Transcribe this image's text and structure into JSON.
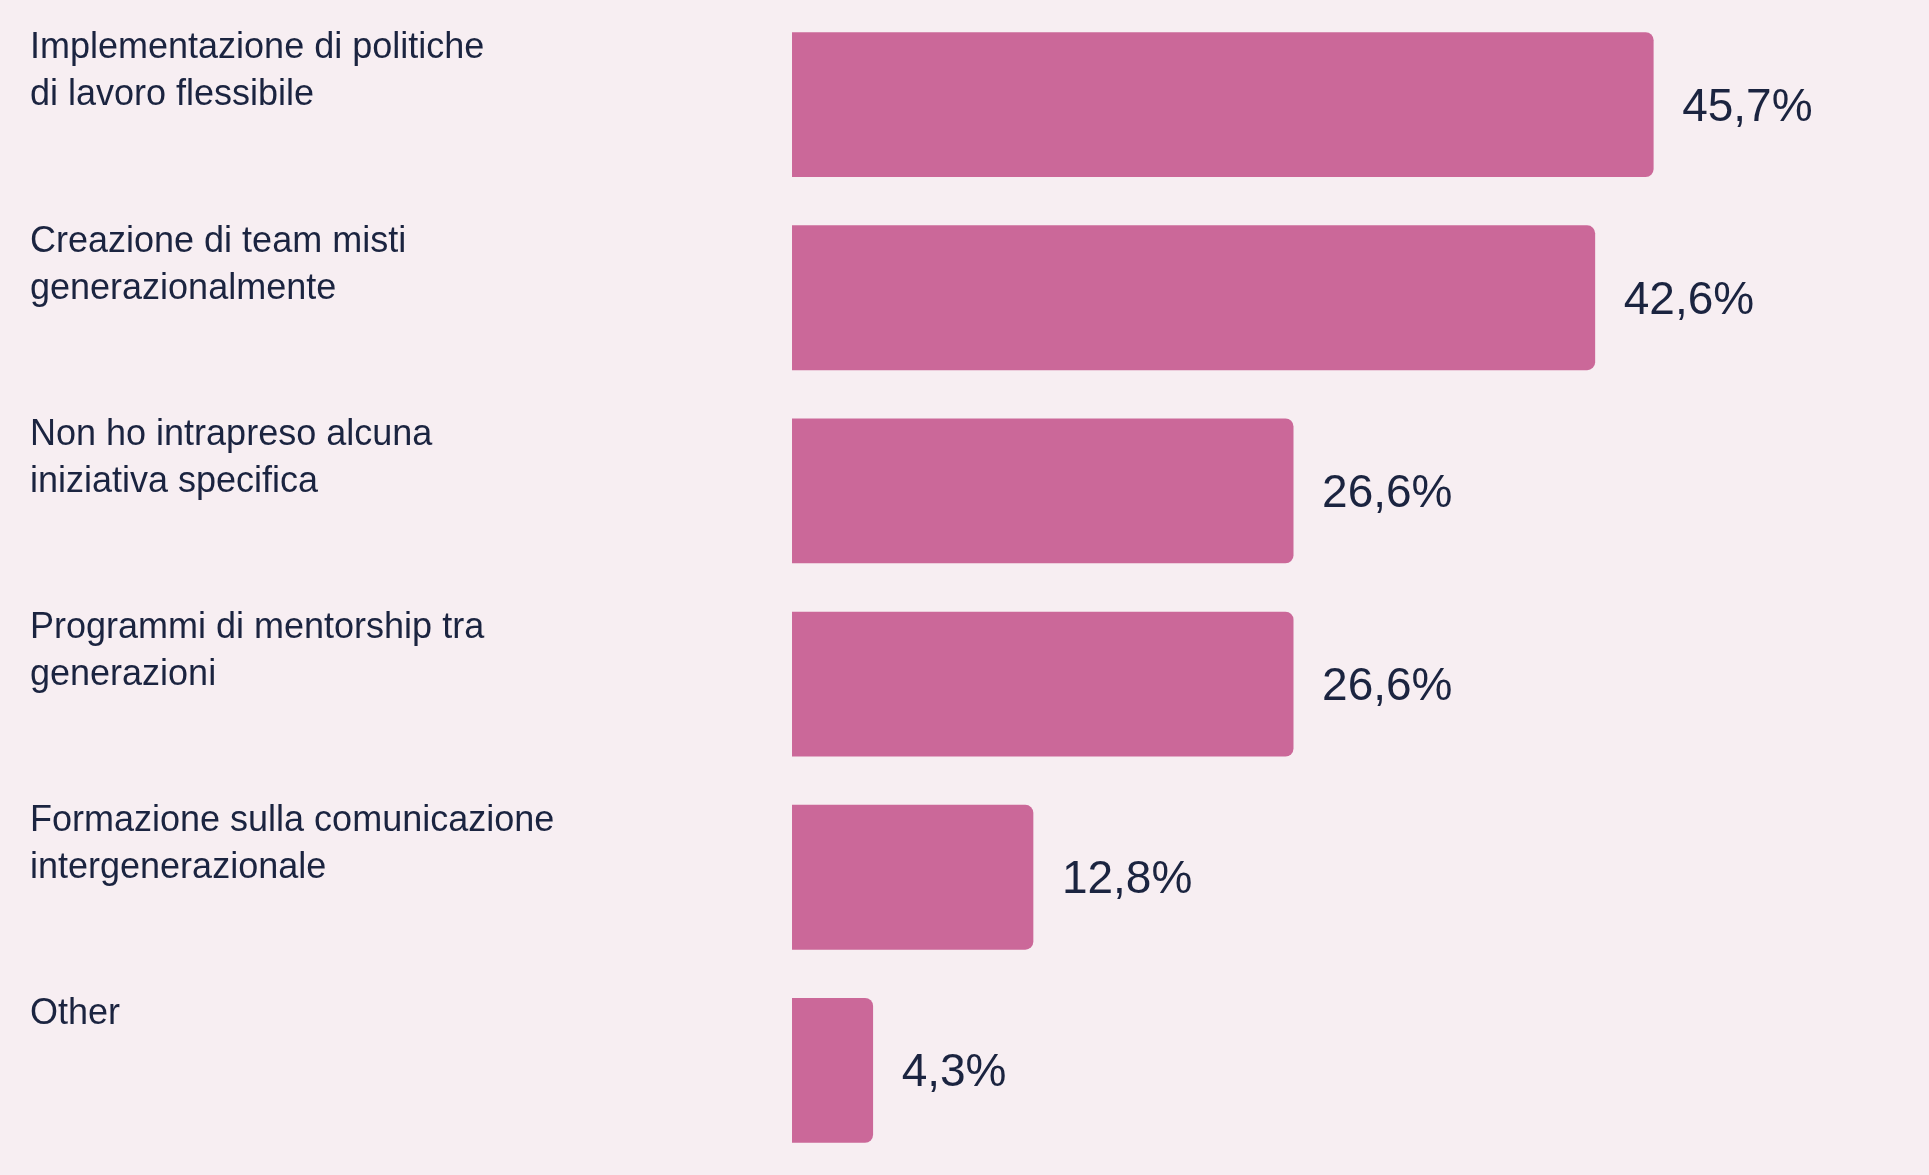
{
  "chart_data": {
    "type": "bar",
    "orientation": "horizontal",
    "categories": [
      "Implementazione di politiche di lavoro flessibile",
      "Creazione di team misti generazionalmente",
      "Non ho intrapreso alcuna iniziativa specifica",
      "Programmi di mentorship tra generazioni",
      "Formazione sulla comunicazione intergenerazionale",
      "Other"
    ],
    "values": [
      45.7,
      42.6,
      26.6,
      26.6,
      12.8,
      4.3
    ],
    "value_labels": [
      "45,7%",
      "42,6%",
      "26,6%",
      "26,6%",
      "12,8%",
      "4,3%"
    ],
    "color": "#cb6899",
    "legend": false
  }
}
